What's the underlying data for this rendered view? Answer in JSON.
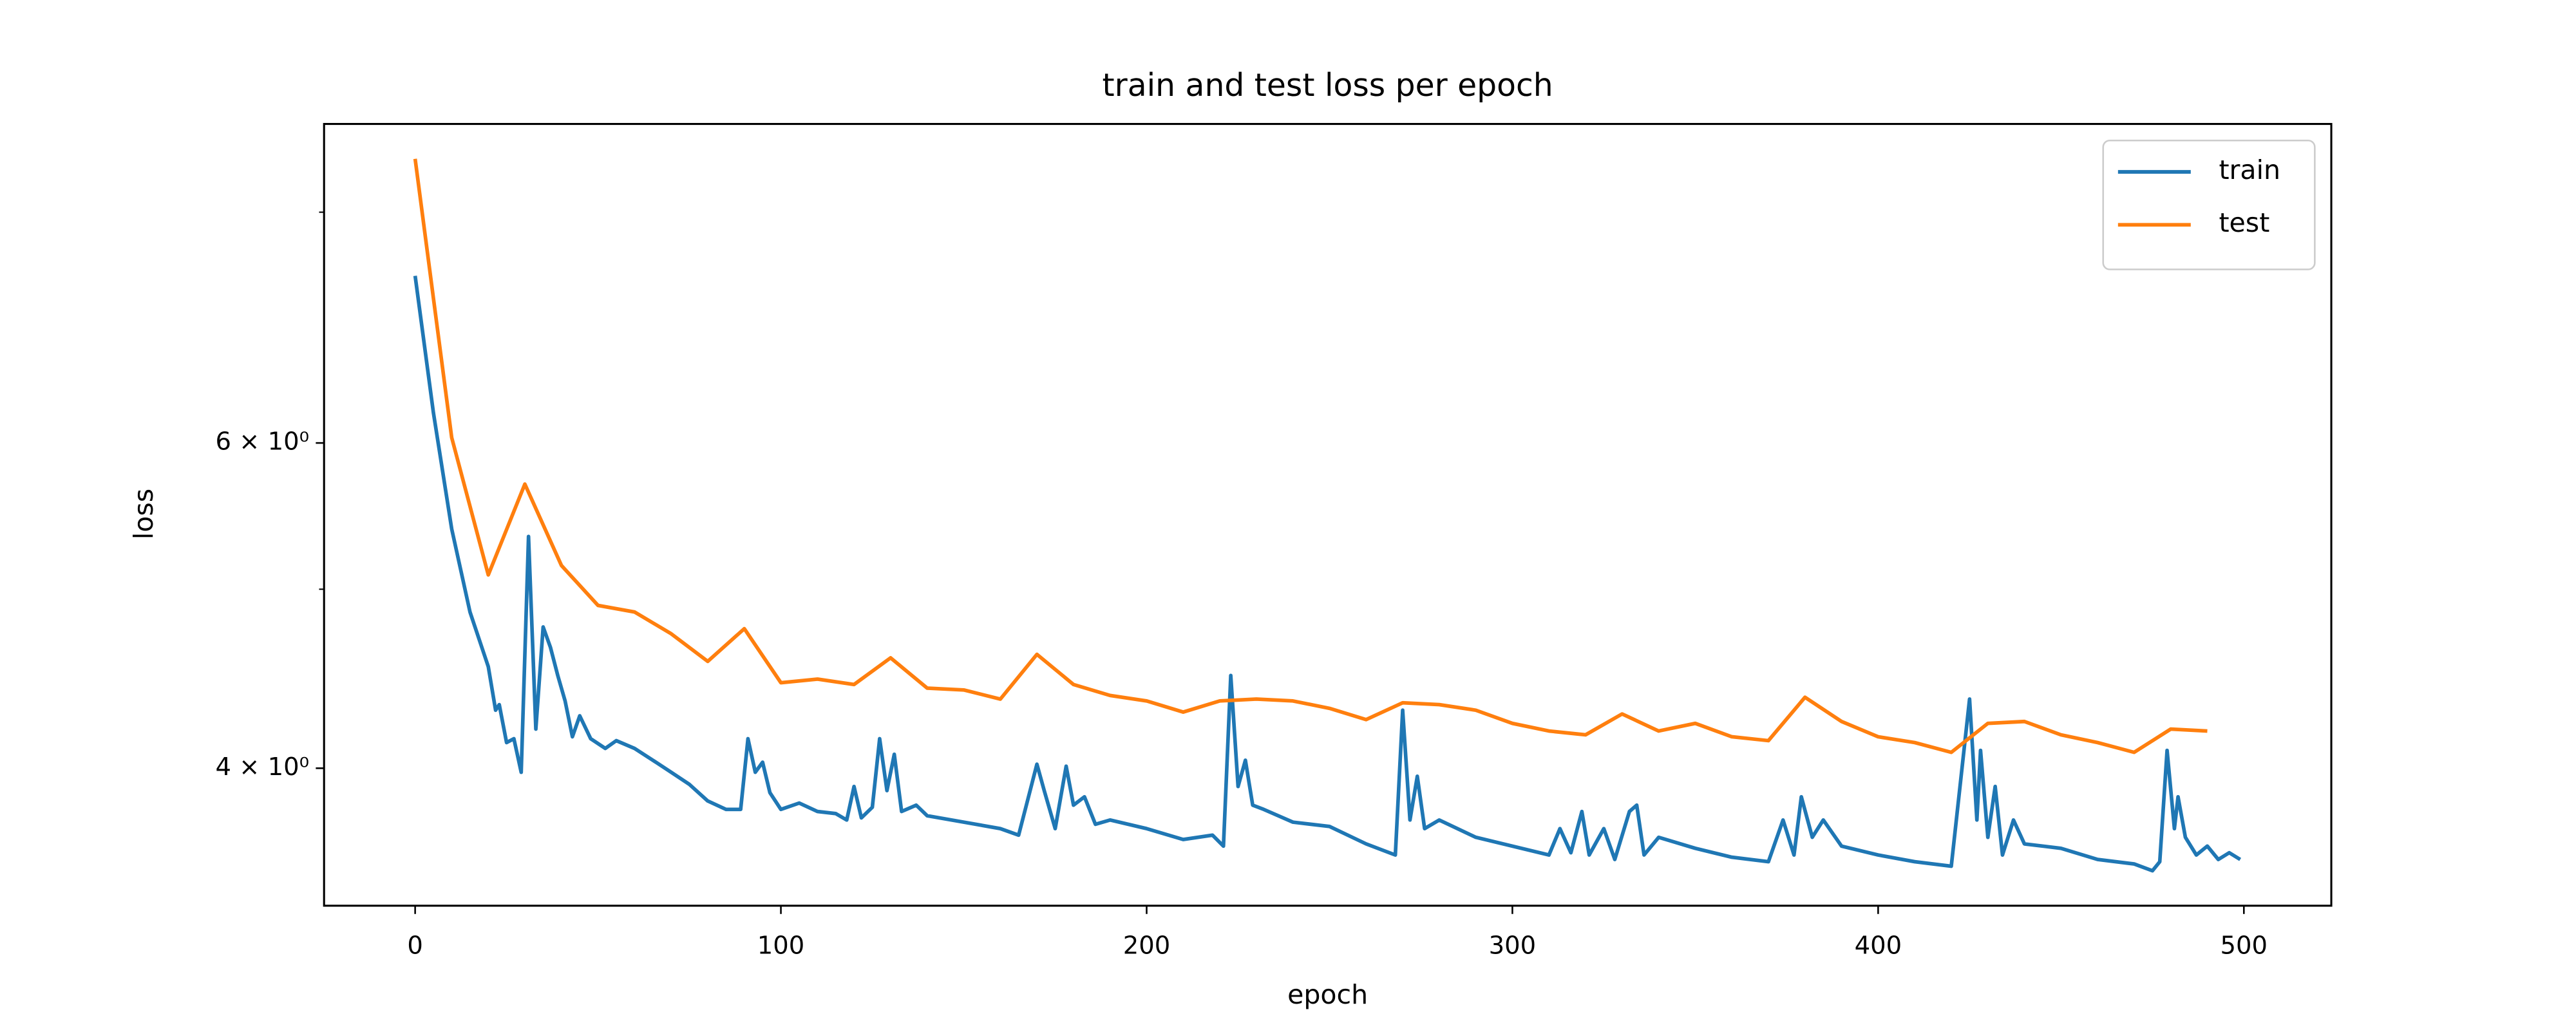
{
  "chart_data": {
    "type": "line",
    "title": "train and test loss per epoch",
    "xlabel": "epoch",
    "ylabel": "loss",
    "log_y": true,
    "grid": false,
    "legend": "upper right",
    "xlim": [
      -24.9,
      523.9
    ],
    "ylim": [
      3.37,
      8.93
    ],
    "xticks": [
      0,
      100,
      200,
      300,
      400,
      500
    ],
    "yticks": [
      {
        "value": 4,
        "label": "4 × 10⁰"
      },
      {
        "value": 6,
        "label": "6 × 10⁰"
      }
    ],
    "yminorticks": [
      5,
      8
    ],
    "series": [
      {
        "name": "train",
        "color": "#1f77b4",
        "x": [
          0,
          5,
          10,
          15,
          20,
          22,
          23,
          25,
          27,
          29,
          31,
          33,
          35,
          37,
          39,
          41,
          43,
          45,
          48,
          52,
          55,
          60,
          65,
          70,
          75,
          80,
          85,
          89,
          91,
          93,
          95,
          97,
          100,
          105,
          110,
          115,
          118,
          120,
          122,
          125,
          127,
          129,
          131,
          133,
          137,
          140,
          150,
          160,
          165,
          168,
          170,
          172,
          175,
          178,
          180,
          183,
          186,
          190,
          200,
          210,
          218,
          221,
          223,
          225,
          227,
          229,
          232,
          240,
          250,
          260,
          268,
          270,
          272,
          274,
          276,
          280,
          290,
          300,
          310,
          313,
          316,
          319,
          321,
          325,
          328,
          332,
          334,
          336,
          340,
          350,
          360,
          370,
          374,
          377,
          379,
          382,
          385,
          390,
          400,
          410,
          420,
          425,
          427,
          428,
          430,
          432,
          434,
          437,
          440,
          450,
          460,
          470,
          475,
          477,
          479,
          481,
          482,
          484,
          487,
          490,
          493,
          496,
          499
        ],
        "values": [
          7.39,
          6.23,
          5.39,
          4.86,
          4.54,
          4.3,
          4.33,
          4.13,
          4.15,
          3.98,
          5.34,
          4.2,
          4.77,
          4.65,
          4.49,
          4.35,
          4.16,
          4.27,
          4.15,
          4.1,
          4.14,
          4.1,
          4.04,
          3.98,
          3.92,
          3.84,
          3.8,
          3.8,
          4.15,
          3.98,
          4.03,
          3.88,
          3.8,
          3.83,
          3.79,
          3.78,
          3.75,
          3.91,
          3.76,
          3.81,
          4.15,
          3.89,
          4.07,
          3.79,
          3.82,
          3.77,
          3.74,
          3.71,
          3.68,
          3.88,
          4.02,
          3.89,
          3.71,
          4.01,
          3.82,
          3.86,
          3.73,
          3.75,
          3.71,
          3.66,
          3.68,
          3.63,
          4.49,
          3.91,
          4.04,
          3.82,
          3.8,
          3.74,
          3.72,
          3.64,
          3.59,
          4.3,
          3.75,
          3.96,
          3.71,
          3.75,
          3.67,
          3.63,
          3.59,
          3.71,
          3.6,
          3.79,
          3.59,
          3.71,
          3.57,
          3.79,
          3.82,
          3.59,
          3.67,
          3.62,
          3.58,
          3.56,
          3.75,
          3.59,
          3.86,
          3.67,
          3.75,
          3.63,
          3.59,
          3.56,
          3.54,
          4.36,
          3.75,
          4.09,
          3.67,
          3.91,
          3.59,
          3.75,
          3.64,
          3.62,
          3.57,
          3.55,
          3.52,
          3.56,
          4.09,
          3.71,
          3.86,
          3.67,
          3.59,
          3.63,
          3.57,
          3.6,
          3.57
        ]
      },
      {
        "name": "test",
        "color": "#ff7f0e",
        "x": [
          0,
          10,
          20,
          30,
          40,
          50,
          60,
          70,
          80,
          90,
          100,
          110,
          120,
          130,
          140,
          150,
          160,
          170,
          180,
          190,
          200,
          210,
          220,
          230,
          240,
          250,
          260,
          270,
          280,
          290,
          300,
          310,
          320,
          330,
          340,
          350,
          360,
          370,
          380,
          390,
          400,
          410,
          420,
          430,
          440,
          450,
          460,
          470,
          480,
          490
        ],
        "values": [
          8.55,
          6.04,
          5.09,
          5.7,
          5.15,
          4.9,
          4.86,
          4.73,
          4.57,
          4.76,
          4.45,
          4.47,
          4.44,
          4.59,
          4.42,
          4.41,
          4.36,
          4.61,
          4.44,
          4.38,
          4.35,
          4.29,
          4.35,
          4.36,
          4.35,
          4.31,
          4.25,
          4.34,
          4.33,
          4.3,
          4.23,
          4.19,
          4.17,
          4.28,
          4.19,
          4.23,
          4.16,
          4.14,
          4.37,
          4.24,
          4.16,
          4.13,
          4.08,
          4.23,
          4.24,
          4.17,
          4.13,
          4.08,
          4.2,
          4.19
        ]
      }
    ]
  }
}
